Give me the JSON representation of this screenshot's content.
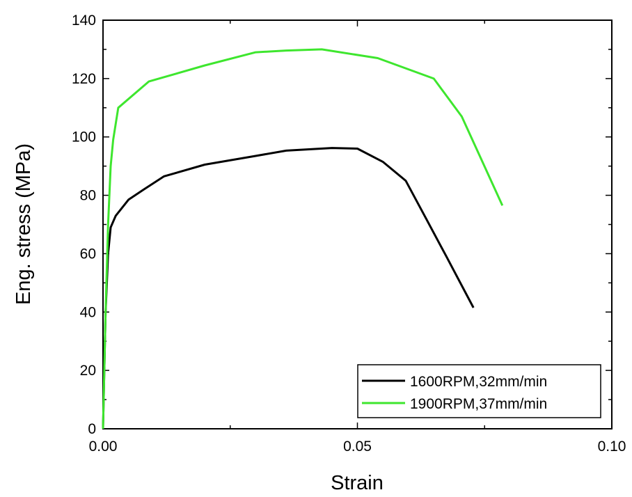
{
  "chart_data": {
    "type": "line",
    "xlabel": "Strain",
    "ylabel": "Eng. stress (MPa)",
    "xlim": [
      0,
      0.1
    ],
    "ylim": [
      0,
      140
    ],
    "xticks": [
      0,
      0.05,
      0.1
    ],
    "xtick_labels": [
      "0.00",
      "0.05",
      "0.10"
    ],
    "yticks": [
      0,
      20,
      40,
      60,
      80,
      100,
      120,
      140
    ],
    "ytick_labels": [
      "0",
      "20",
      "40",
      "60",
      "80",
      "100",
      "120",
      "140"
    ],
    "grid": false,
    "legend_position": "bottom-right",
    "series": [
      {
        "name": "1600RPM,32mm/min",
        "color": "#000000",
        "x": [
          0,
          0.0005,
          0.001,
          0.0015,
          0.0025,
          0.005,
          0.008,
          0.012,
          0.02,
          0.03,
          0.036,
          0.045,
          0.05,
          0.055,
          0.0595,
          0.0635,
          0.0675,
          0.0728
        ],
        "y": [
          0,
          40,
          60,
          69,
          73,
          78.5,
          82,
          86.5,
          90.5,
          93.5,
          95.3,
          96.2,
          96,
          91.5,
          85,
          72,
          59,
          41.5
        ]
      },
      {
        "name": "1900RPM,37mm/min",
        "color": "#3ee62e",
        "x": [
          0,
          0.0005,
          0.001,
          0.0015,
          0.002,
          0.003,
          0.009,
          0.02,
          0.03,
          0.036,
          0.043,
          0.054,
          0.065,
          0.0705,
          0.0785
        ],
        "y": [
          0,
          40,
          70,
          90,
          99,
          110,
          119,
          124.5,
          129,
          129.6,
          130,
          127,
          120,
          107,
          76.5
        ]
      }
    ]
  }
}
